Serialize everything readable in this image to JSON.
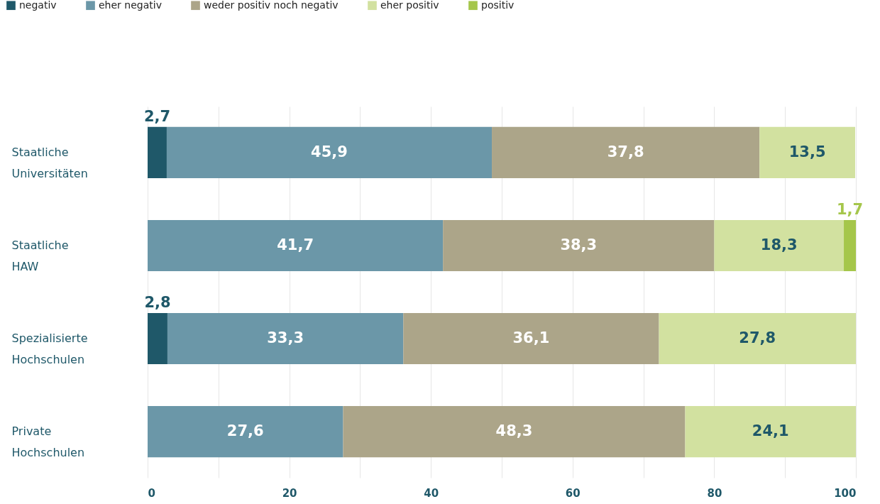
{
  "chart_data": {
    "type": "bar",
    "orientation": "horizontal",
    "stacked": true,
    "categories": [
      "Staatliche Universitäten",
      "Staatliche HAW",
      "Spezialisierte Hochschulen",
      "Private Hochschulen"
    ],
    "series": [
      {
        "name": "negativ",
        "color": "#1f5869",
        "values": [
          2.7,
          null,
          2.8,
          null
        ],
        "value_labels": [
          "2,7",
          null,
          "2,8",
          null
        ]
      },
      {
        "name": "eher negativ",
        "color": "#6b97a8",
        "values": [
          45.9,
          41.7,
          33.3,
          27.6
        ],
        "value_labels": [
          "45,9",
          "41,7",
          "33,3",
          "27,6"
        ]
      },
      {
        "name": "weder positiv noch negativ",
        "color": "#aca589",
        "values": [
          37.8,
          38.3,
          36.1,
          48.3
        ],
        "value_labels": [
          "37,8",
          "38,3",
          "36,1",
          "48,3"
        ]
      },
      {
        "name": "eher positiv",
        "color": "#d2e1a0",
        "values": [
          13.5,
          18.3,
          27.8,
          24.1
        ],
        "value_labels": [
          "13,5",
          "18,3",
          "27,8",
          "24,1"
        ]
      },
      {
        "name": "positiv",
        "color": "#a5c64b",
        "values": [
          null,
          1.7,
          null,
          null
        ],
        "value_labels": [
          null,
          "1,7",
          null,
          null
        ]
      }
    ],
    "xlim": [
      0,
      100
    ],
    "xticks": [
      0,
      {
        "value": 10,
        "label": null
      },
      20,
      {
        "value": 30,
        "label": null
      },
      40,
      {
        "value": 50,
        "label": null
      },
      60,
      {
        "value": 70,
        "label": null
      },
      80,
      {
        "value": 90,
        "label": null
      },
      100
    ],
    "grid": true,
    "legend": "top left"
  }
}
